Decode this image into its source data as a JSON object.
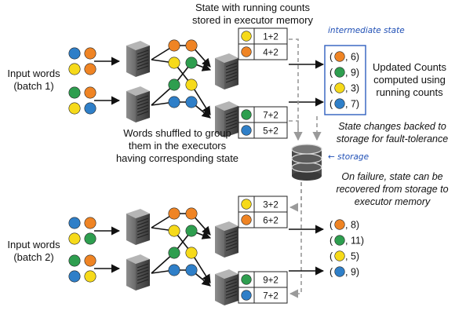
{
  "colors": {
    "blue": "#2f7fc8",
    "orange": "#ef8424",
    "yellow": "#f6da1a",
    "green": "#2e9e4f",
    "arrow": "#111111",
    "dashed": "#9a9a9a",
    "handwriting": "#1f4fb5"
  },
  "labels": {
    "input_batch1_line1": "Input words",
    "input_batch1_line2": "(batch 1)",
    "input_batch2_line1": "Input words",
    "input_batch2_line2": "(batch 2)",
    "state_title_line1": "State with running counts",
    "state_title_line2": "stored in executor memory",
    "intermediate_state": "intermediate state",
    "updated_line1": "Updated Counts",
    "updated_line2": "computed using",
    "updated_line3": "running counts",
    "shuffle_line1": "Words shuffled to group",
    "shuffle_line2": "them in the executors",
    "shuffle_line3": "having corresponding state",
    "backed_line1": "State changes backed to",
    "backed_line2": "storage for fault-tolerance",
    "storage_note": "← storage",
    "failure_line1": "On failure, state can be",
    "failure_line2": "recovered from storage to",
    "failure_line3": "executor memory"
  },
  "batch1": {
    "state_top": [
      {
        "color": "yellow",
        "text": "1+2"
      },
      {
        "color": "orange",
        "text": "4+2"
      }
    ],
    "state_bottom": [
      {
        "color": "green",
        "text": "7+2"
      },
      {
        "color": "blue",
        "text": "5+2"
      }
    ],
    "results": [
      {
        "color": "orange",
        "text": "(",
        "value": ", 6)"
      },
      {
        "color": "green",
        "text": "(",
        "value": ", 9)"
      },
      {
        "color": "yellow",
        "text": "(",
        "value": ", 3)"
      },
      {
        "color": "blue",
        "text": "(",
        "value": ", 7)"
      }
    ]
  },
  "batch2": {
    "state_top": [
      {
        "color": "yellow",
        "text": "3+2"
      },
      {
        "color": "orange",
        "text": "6+2"
      }
    ],
    "state_bottom": [
      {
        "color": "green",
        "text": "9+2"
      },
      {
        "color": "blue",
        "text": "7+2"
      }
    ],
    "results": [
      {
        "color": "orange",
        "text": "(",
        "value": ", 8)"
      },
      {
        "color": "green",
        "text": "(",
        "value": ", 11)"
      },
      {
        "color": "yellow",
        "text": "(",
        "value": ", 5)"
      },
      {
        "color": "blue",
        "text": "(",
        "value": ", 9)"
      }
    ]
  }
}
